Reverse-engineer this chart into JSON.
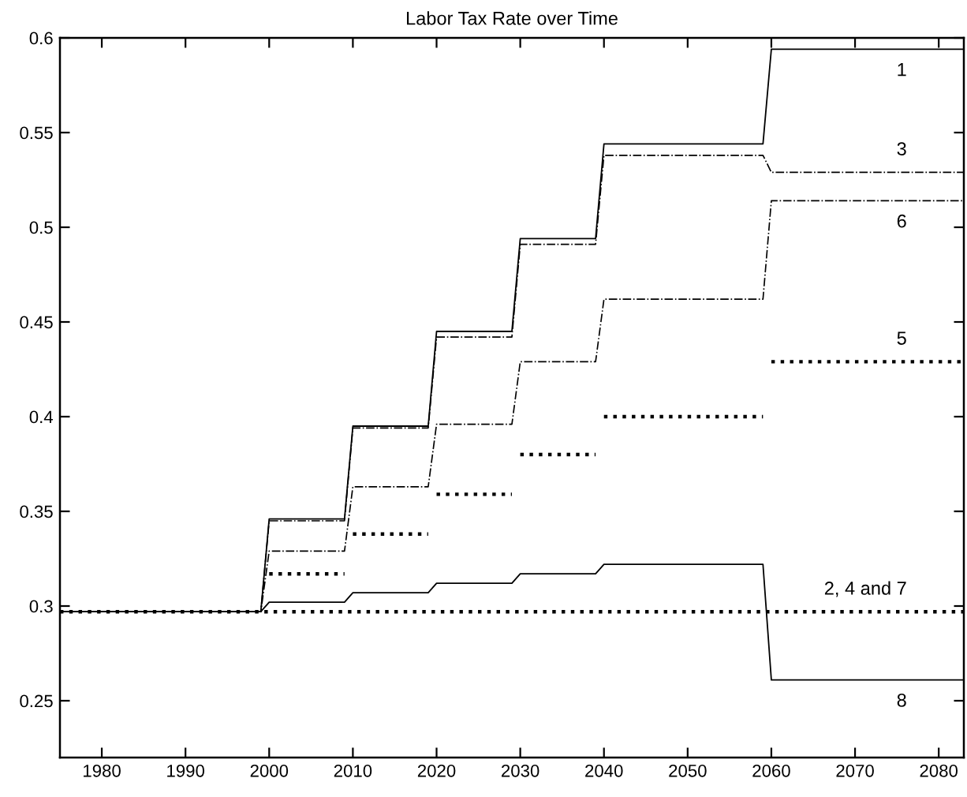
{
  "chart_data": {
    "type": "line",
    "title": "Labor Tax Rate over Time",
    "x": [
      1975,
      1999,
      2000,
      2009,
      2010,
      2019,
      2020,
      2029,
      2030,
      2039,
      2040,
      2059,
      2060,
      2083
    ],
    "series": [
      {
        "name": "1",
        "color": "#000000",
        "line_style": "solid",
        "values": [
          0.297,
          0.297,
          0.346,
          0.346,
          0.395,
          0.395,
          0.445,
          0.445,
          0.494,
          0.494,
          0.544,
          0.544,
          0.594,
          0.594
        ]
      },
      {
        "name": "3",
        "color": "#000000",
        "line_style": "dashdot",
        "values": [
          0.297,
          0.297,
          0.345,
          0.345,
          0.394,
          0.394,
          0.442,
          0.442,
          0.491,
          0.491,
          0.538,
          0.538,
          0.529,
          0.529
        ]
      },
      {
        "name": "6",
        "color": "#000000",
        "line_style": "dashdot",
        "values": [
          0.297,
          0.297,
          0.329,
          0.329,
          0.363,
          0.363,
          0.396,
          0.396,
          0.429,
          0.429,
          0.462,
          0.462,
          0.514,
          0.514
        ]
      },
      {
        "name": "5",
        "color": "#000000",
        "line_style": "dotted",
        "x": [
          2000,
          2009,
          2009.5,
          2010,
          2019,
          2019.5,
          2020,
          2029,
          2029.5,
          2030,
          2039,
          2039.5,
          2040,
          2059,
          2059.5,
          2060,
          2083
        ],
        "values": [
          0.317,
          0.317,
          null,
          0.338,
          0.338,
          null,
          0.359,
          0.359,
          null,
          0.38,
          0.38,
          null,
          0.4,
          0.4,
          null,
          0.429,
          0.429
        ]
      },
      {
        "name": "2, 4 and 7",
        "color": "#000000",
        "line_style": "dotted",
        "x": [
          1975,
          2083
        ],
        "values": [
          0.297,
          0.297
        ]
      },
      {
        "name": "8",
        "color": "#000000",
        "line_style": "solid",
        "values": [
          0.297,
          0.297,
          0.302,
          0.302,
          0.307,
          0.307,
          0.312,
          0.312,
          0.317,
          0.317,
          0.322,
          0.322,
          0.261,
          0.261
        ]
      }
    ],
    "xlim": [
      1975,
      2083
    ],
    "ylim": [
      0.22,
      0.6
    ],
    "xticks": [
      1980,
      1990,
      2000,
      2010,
      2020,
      2030,
      2040,
      2050,
      2060,
      2070,
      2080
    ],
    "yticks": [
      0.25,
      0.3,
      0.35,
      0.4,
      0.45,
      0.5,
      0.55,
      0.6
    ],
    "grid": false
  }
}
